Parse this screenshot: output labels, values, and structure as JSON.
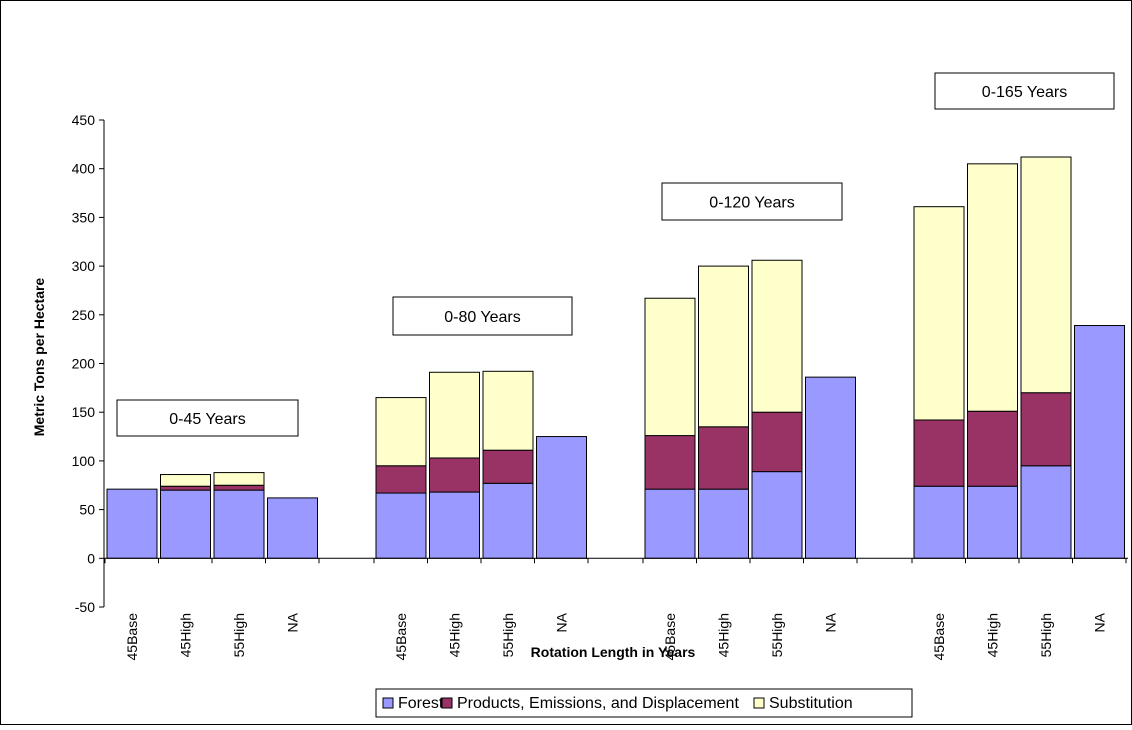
{
  "chart_data": {
    "type": "bar",
    "stacked": true,
    "title": "",
    "xlabel": "Rotation Length in Years",
    "ylabel": "Metric Tons per Hectare",
    "ylim": [
      -50,
      450
    ],
    "yticks": [
      -50,
      0,
      50,
      100,
      150,
      200,
      250,
      300,
      350,
      400,
      450
    ],
    "groups": [
      {
        "label": "0-45 Years",
        "categories": [
          "45Base",
          "45High",
          "55High",
          "NA"
        ]
      },
      {
        "label": "0-80 Years",
        "categories": [
          "45Base",
          "45High",
          "55High",
          "NA"
        ]
      },
      {
        "label": "0-120 Years",
        "categories": [
          "45Base",
          "45High",
          "55High",
          "NA"
        ]
      },
      {
        "label": "0-165 Years",
        "categories": [
          "45Base",
          "45High",
          "55High",
          "NA"
        ]
      }
    ],
    "series": [
      {
        "name": "Forest",
        "color": "#9999ff",
        "values": [
          [
            71,
            70,
            70,
            62
          ],
          [
            67,
            68,
            77,
            125
          ],
          [
            71,
            71,
            89,
            186
          ],
          [
            74,
            74,
            95,
            239
          ]
        ]
      },
      {
        "name": "Products, Emissions, and Displacement",
        "color": "#993366",
        "values": [
          [
            0,
            4,
            5,
            0
          ],
          [
            28,
            35,
            34,
            0
          ],
          [
            55,
            64,
            61,
            0
          ],
          [
            68,
            77,
            75,
            0
          ]
        ]
      },
      {
        "name": "Substitution",
        "color": "#ffffcc",
        "values": [
          [
            0,
            12,
            13,
            0
          ],
          [
            70,
            88,
            81,
            0
          ],
          [
            141,
            165,
            156,
            0
          ],
          [
            219,
            254,
            242,
            0
          ]
        ]
      }
    ],
    "legend_position": "bottom",
    "grid": false
  }
}
